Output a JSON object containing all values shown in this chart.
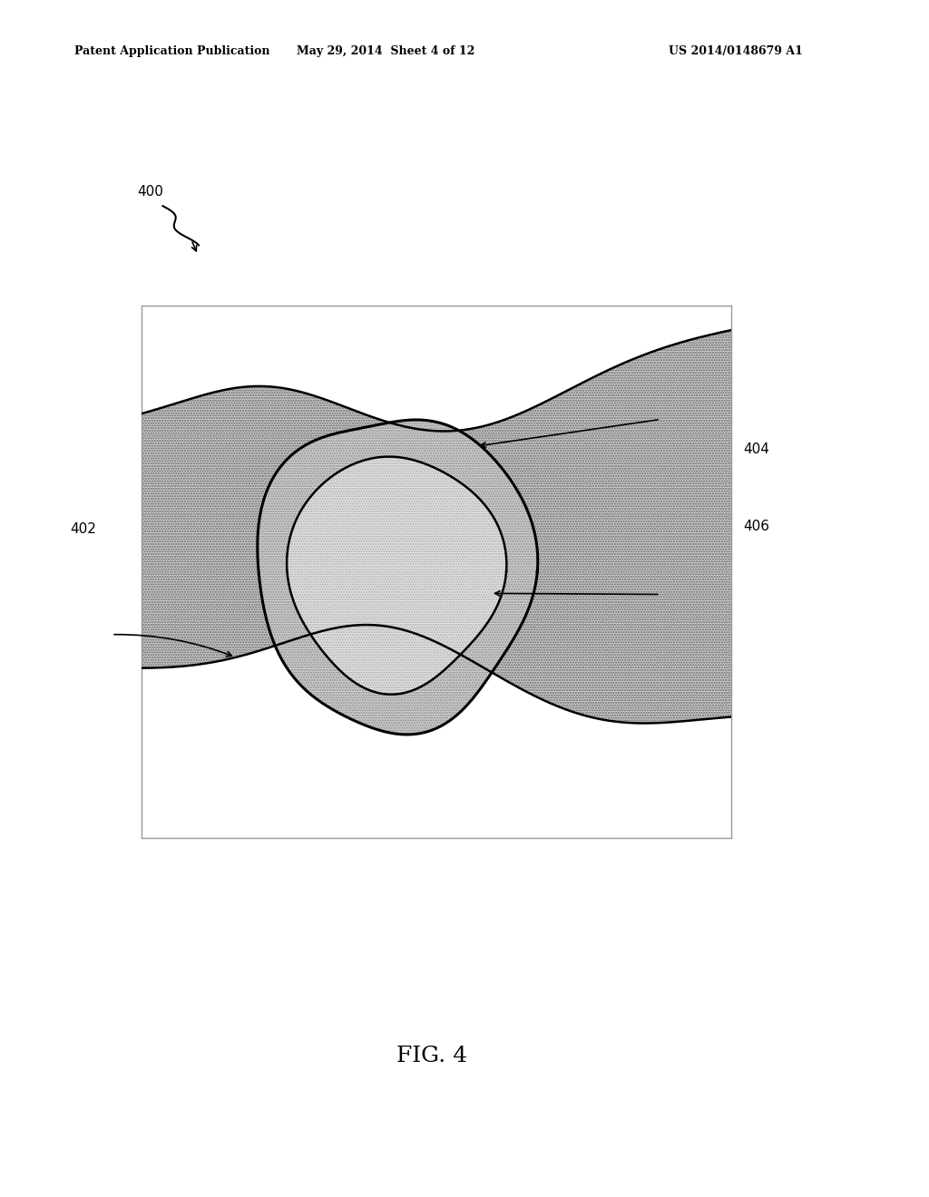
{
  "background_color": "#ffffff",
  "header_left": "Patent Application Publication",
  "header_center": "May 29, 2014  Sheet 4 of 12",
  "header_right": "US 2014/0148679 A1",
  "fig_label": "FIG. 4",
  "ref_400": "400",
  "ref_402": "402",
  "ref_404": "404",
  "ref_406": "406",
  "outer_tissue_color": "#c8c8c8",
  "ring_color": "#d0d0d0",
  "inner_color": "#e4e4e4",
  "box_color": "#aaaaaa"
}
